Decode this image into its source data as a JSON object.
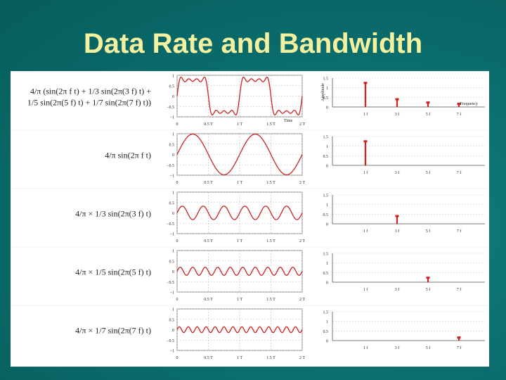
{
  "slide": {
    "title": "Data Rate and Bandwidth",
    "accent_color": "#f3f0a0",
    "background_color": "#0a6a6a",
    "signal_color": "#cc2222"
  },
  "rows": [
    {
      "formula_lines": [
        "4/π (sin(2π f t) + 1/3 sin(2π(3 f) t) +",
        "1/5 sin(2π(5 f) t) + 1/7 sin(2π(7 f) t))"
      ],
      "harmonics": [
        1,
        3,
        5,
        7
      ],
      "y_ticks": [
        "1",
        "0.5",
        "0",
        "−0.5",
        "−1"
      ],
      "x_ticks": [
        "0",
        "0.5 T",
        "1 T",
        "1.5 T",
        "2 T"
      ],
      "x_label": "Time",
      "amp_label": "Amplitude",
      "freq_label": "Frequency",
      "amp_ticks": [
        "1.5",
        "1",
        "0.5",
        "0"
      ],
      "freq_ticks": [
        "1 f",
        "3 f",
        "5 f",
        "7 f"
      ],
      "spectrum": [
        1.27,
        0.42,
        0.25,
        0.18
      ]
    },
    {
      "formula_lines": [
        "4/π sin(2π f t)"
      ],
      "harmonics": [
        1
      ],
      "y_ticks": [
        "1",
        "0.5",
        "0",
        "−0.5",
        "−1"
      ],
      "x_ticks": [
        "0",
        "0.5 T",
        "1 T",
        "1.5 T",
        "2 T"
      ],
      "x_label": "",
      "amp_label": "",
      "freq_label": "",
      "amp_ticks": [
        "1.5",
        "1",
        "0.5",
        "0"
      ],
      "freq_ticks": [
        "1 f",
        "3 f",
        "5 f",
        "7 f"
      ],
      "spectrum": [
        1.27,
        0,
        0,
        0
      ]
    },
    {
      "formula_lines": [
        "4/π × 1/3 sin(2π(3 f) t)"
      ],
      "harmonics": [
        3
      ],
      "y_ticks": [
        "1",
        "0.5",
        "0",
        "−0.5",
        "−1"
      ],
      "x_ticks": [
        "0",
        "0.5 T",
        "1 T",
        "1.5 T",
        "2 T"
      ],
      "x_label": "",
      "amp_label": "",
      "freq_label": "",
      "amp_ticks": [
        "1.5",
        "1",
        "0.5",
        "0"
      ],
      "freq_ticks": [
        "1 f",
        "3 f",
        "5 f",
        "7 f"
      ],
      "spectrum": [
        0,
        0.42,
        0,
        0
      ]
    },
    {
      "formula_lines": [
        "4/π × 1/5 sin(2π(5 f) t)"
      ],
      "harmonics": [
        5
      ],
      "y_ticks": [
        "1",
        "0.5",
        "0",
        "−0.5",
        "−1"
      ],
      "x_ticks": [
        "0",
        "0.5 T",
        "1 T",
        "1.5 T",
        "2 T"
      ],
      "x_label": "",
      "amp_label": "",
      "freq_label": "",
      "amp_ticks": [
        "1.5",
        "1",
        "0.5",
        "0"
      ],
      "freq_ticks": [
        "1 f",
        "3 f",
        "5 f",
        "7 f"
      ],
      "spectrum": [
        0,
        0,
        0.25,
        0
      ]
    },
    {
      "formula_lines": [
        "4/π × 1/7 sin(2π(7 f) t)"
      ],
      "harmonics": [
        7
      ],
      "y_ticks": [
        "1",
        "0.5",
        "0",
        "−0.5",
        "−1"
      ],
      "x_ticks": [
        "0",
        "0.5 T",
        "1 T",
        "1.5 T",
        "2 T"
      ],
      "x_label": "",
      "amp_label": "",
      "freq_label": "",
      "amp_ticks": [
        "1.5",
        "1",
        "0.5",
        "0"
      ],
      "freq_ticks": [
        "1 f",
        "3 f",
        "5 f",
        "7 f"
      ],
      "spectrum": [
        0,
        0,
        0,
        0.18
      ]
    }
  ]
}
